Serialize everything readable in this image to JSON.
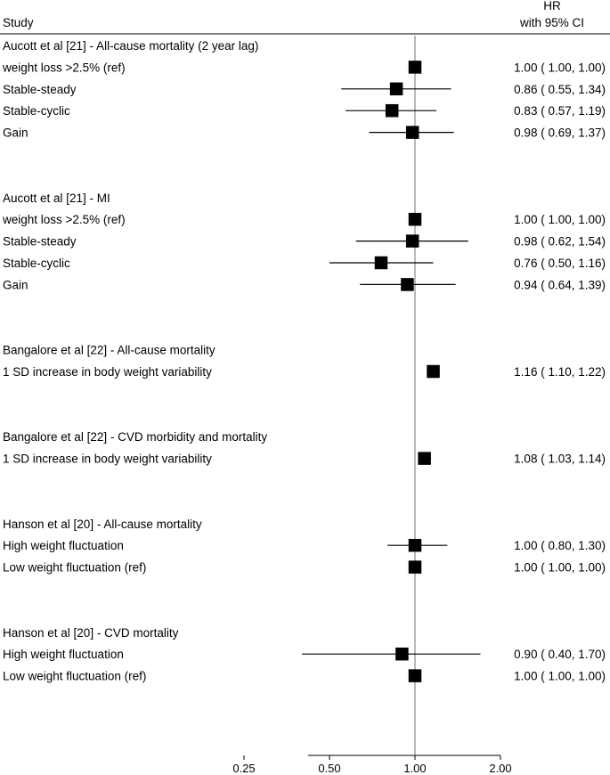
{
  "chart_data": {
    "type": "forest",
    "header": {
      "study_label": "Study",
      "effect_label_line1": "HR",
      "effect_label_line2": "with 95% CI"
    },
    "x_scale": "log",
    "xlim": [
      0.42,
      2.0
    ],
    "x_ticks": [
      {
        "value": 0.25,
        "label": "0.25"
      },
      {
        "value": 0.5,
        "label": "0.50"
      },
      {
        "value": 1.0,
        "label": "1.00"
      },
      {
        "value": 2.0,
        "label": "2.00"
      }
    ],
    "reference_line": 1.0,
    "groups": [
      {
        "title": "Aucott et al [21] - All-cause mortality (2 year lag)",
        "rows": [
          {
            "label": "weight loss >2.5% (ref)",
            "hr": 1.0,
            "lo": 1.0,
            "hi": 1.0,
            "text": "1.00 ( 1.00,  1.00)"
          },
          {
            "label": "Stable-steady",
            "hr": 0.86,
            "lo": 0.55,
            "hi": 1.34,
            "text": "0.86 ( 0.55,  1.34)"
          },
          {
            "label": "Stable-cyclic",
            "hr": 0.83,
            "lo": 0.57,
            "hi": 1.19,
            "text": "0.83 ( 0.57,  1.19)"
          },
          {
            "label": "Gain",
            "hr": 0.98,
            "lo": 0.69,
            "hi": 1.37,
            "text": "0.98 ( 0.69,  1.37)"
          }
        ]
      },
      {
        "title": "Aucott et al [21] - MI",
        "rows": [
          {
            "label": "weight loss >2.5% (ref)",
            "hr": 1.0,
            "lo": 1.0,
            "hi": 1.0,
            "text": "1.00 ( 1.00,  1.00)"
          },
          {
            "label": "Stable-steady",
            "hr": 0.98,
            "lo": 0.62,
            "hi": 1.54,
            "text": "0.98 ( 0.62,  1.54)"
          },
          {
            "label": "Stable-cyclic",
            "hr": 0.76,
            "lo": 0.5,
            "hi": 1.16,
            "text": "0.76 ( 0.50,  1.16)"
          },
          {
            "label": "Gain",
            "hr": 0.94,
            "lo": 0.64,
            "hi": 1.39,
            "text": "0.94 ( 0.64,  1.39)"
          }
        ]
      },
      {
        "title": "Bangalore et al [22] - All-cause mortality",
        "rows": [
          {
            "label": "1 SD increase in body weight variability",
            "hr": 1.16,
            "lo": 1.1,
            "hi": 1.22,
            "text": "1.16 ( 1.10,  1.22)"
          }
        ]
      },
      {
        "title": "Bangalore et al [22] - CVD morbidity and mortality",
        "rows": [
          {
            "label": "1 SD increase in body weight variability",
            "hr": 1.08,
            "lo": 1.03,
            "hi": 1.14,
            "text": "1.08 ( 1.03,  1.14)"
          }
        ]
      },
      {
        "title": "Hanson et al [20] - All-cause mortality",
        "rows": [
          {
            "label": "High weight fluctuation",
            "hr": 1.0,
            "lo": 0.8,
            "hi": 1.3,
            "text": "1.00 ( 0.80,  1.30)"
          },
          {
            "label": "Low weight fluctuation (ref)",
            "hr": 1.0,
            "lo": 1.0,
            "hi": 1.0,
            "text": "1.00 ( 1.00,  1.00)"
          }
        ]
      },
      {
        "title": "Hanson et al [20] - CVD mortality",
        "rows": [
          {
            "label": "High weight fluctuation",
            "hr": 0.9,
            "lo": 0.4,
            "hi": 1.7,
            "text": "0.90 ( 0.40,  1.70)"
          },
          {
            "label": "Low weight fluctuation (ref)",
            "hr": 1.0,
            "lo": 1.0,
            "hi": 1.0,
            "text": "1.00 ( 1.00,  1.00)"
          }
        ]
      }
    ]
  }
}
